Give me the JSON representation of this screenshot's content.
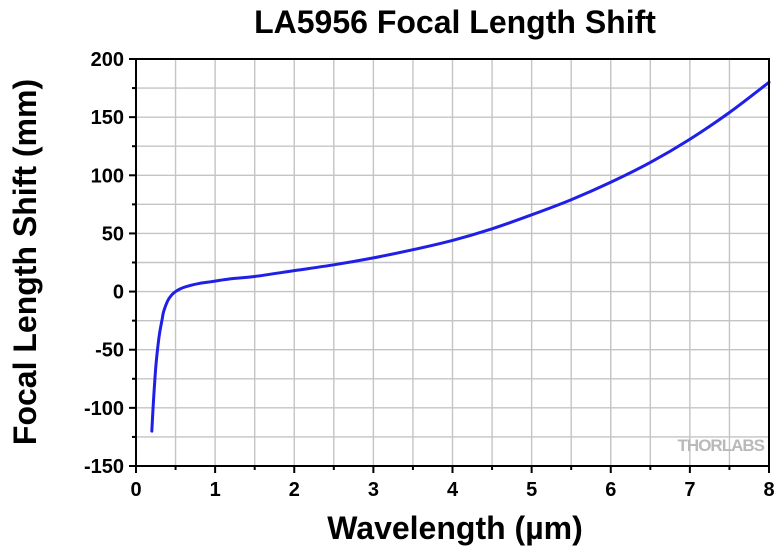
{
  "chart_data": {
    "type": "line",
    "title": "LA5956 Focal Length Shift",
    "xlabel": "Wavelength (µm)",
    "ylabel": "Focal Length Shift (mm)",
    "xlim": [
      0,
      8
    ],
    "ylim": [
      -150,
      200
    ],
    "xticks": [
      0,
      1,
      2,
      3,
      4,
      5,
      6,
      7,
      8
    ],
    "yticks": [
      -150,
      -100,
      -50,
      0,
      50,
      100,
      150,
      200
    ],
    "grid": true,
    "legend": "none",
    "colors": {
      "line": "#1f1fe6",
      "grid": "#c4c4c4",
      "axes": "#000000"
    },
    "series": [
      {
        "x": [
          0.2,
          0.22,
          0.25,
          0.28,
          0.3,
          0.33,
          0.35,
          0.4,
          0.45,
          0.5,
          0.55,
          0.6,
          0.7,
          0.8,
          0.9,
          1.0,
          1.2,
          1.5,
          2.0,
          2.5,
          3.0,
          3.5,
          4.0,
          4.5,
          5.0,
          5.5,
          6.0,
          6.5,
          7.0,
          7.5,
          8.0
        ],
        "y": [
          -120,
          -95,
          -65,
          -45,
          -35,
          -24,
          -17,
          -8,
          -3,
          0,
          2,
          3.5,
          5.5,
          7,
          8,
          9,
          11,
          13,
          18,
          23,
          29,
          36,
          44,
          54,
          66,
          79,
          94,
          111,
          131,
          154,
          180
        ]
      }
    ]
  },
  "watermark": "THORLABS"
}
